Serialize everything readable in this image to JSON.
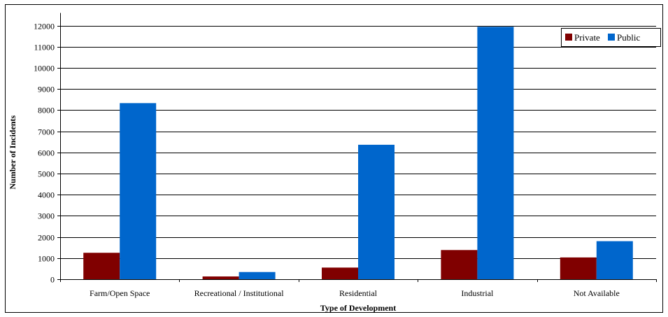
{
  "chart_data": {
    "type": "bar",
    "title": "",
    "xlabel": "Type of Development",
    "ylabel": "Number of Incidents",
    "categories": [
      "Farm/Open Space",
      "Recreational / Institutional",
      "Residential",
      "Industrial",
      "Not Available"
    ],
    "series": [
      {
        "name": "Private",
        "color": "#800000",
        "values": [
          1250,
          130,
          550,
          1380,
          1030
        ]
      },
      {
        "name": "Public",
        "color": "#0066CC",
        "values": [
          8330,
          340,
          6360,
          11940,
          1800
        ]
      }
    ],
    "ylim": [
      0,
      12000
    ],
    "yticks": [
      0,
      1000,
      2000,
      3000,
      4000,
      5000,
      6000,
      7000,
      8000,
      9000,
      10000,
      11000,
      12000
    ],
    "grid": true,
    "legend_position": "top-right"
  }
}
